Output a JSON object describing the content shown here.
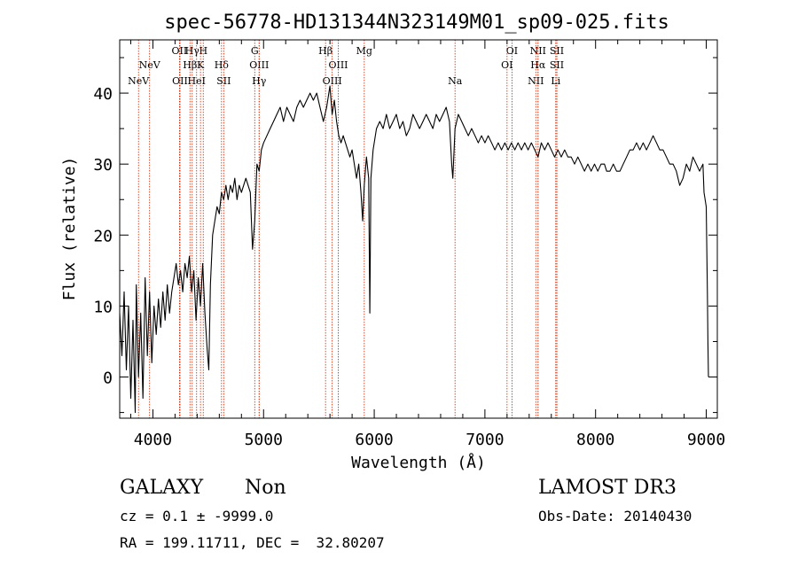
{
  "chart_data": {
    "type": "line",
    "title": "spec-56778-HD131344N323149M01_sp09-025.fits",
    "xlabel": "Wavelength (Å)",
    "ylabel": "Flux (relative)",
    "xlim": [
      3700,
      9100
    ],
    "ylim": [
      -5.8,
      47.5
    ],
    "x_ticks": [
      4000,
      5000,
      6000,
      7000,
      8000,
      9000
    ],
    "y_ticks": [
      0,
      10,
      20,
      30,
      40
    ],
    "grid": false,
    "line_color": "#000000",
    "marker_line_color": "#cc2200",
    "series": [
      {
        "points": [
          [
            3700,
            9
          ],
          [
            3720,
            3
          ],
          [
            3740,
            12
          ],
          [
            3760,
            1
          ],
          [
            3780,
            10
          ],
          [
            3800,
            -3
          ],
          [
            3820,
            8
          ],
          [
            3840,
            -5
          ],
          [
            3850,
            13
          ],
          [
            3870,
            0
          ],
          [
            3890,
            9
          ],
          [
            3910,
            -3
          ],
          [
            3930,
            14
          ],
          [
            3950,
            3
          ],
          [
            3970,
            12
          ],
          [
            3990,
            2
          ],
          [
            4010,
            10
          ],
          [
            4030,
            6
          ],
          [
            4050,
            11
          ],
          [
            4070,
            7
          ],
          [
            4090,
            12
          ],
          [
            4110,
            8
          ],
          [
            4130,
            13
          ],
          [
            4150,
            9
          ],
          [
            4170,
            12
          ],
          [
            4190,
            14
          ],
          [
            4210,
            16
          ],
          [
            4230,
            13
          ],
          [
            4250,
            15
          ],
          [
            4270,
            12
          ],
          [
            4290,
            16
          ],
          [
            4310,
            14
          ],
          [
            4330,
            17
          ],
          [
            4350,
            12
          ],
          [
            4370,
            15
          ],
          [
            4390,
            8
          ],
          [
            4410,
            14
          ],
          [
            4430,
            10
          ],
          [
            4450,
            16
          ],
          [
            4470,
            9
          ],
          [
            4490,
            4
          ],
          [
            4505,
            1
          ],
          [
            4520,
            13
          ],
          [
            4540,
            20
          ],
          [
            4560,
            22
          ],
          [
            4580,
            24
          ],
          [
            4600,
            23
          ],
          [
            4620,
            26
          ],
          [
            4640,
            25
          ],
          [
            4660,
            27
          ],
          [
            4680,
            25
          ],
          [
            4700,
            27
          ],
          [
            4720,
            26
          ],
          [
            4740,
            28
          ],
          [
            4760,
            25
          ],
          [
            4780,
            27
          ],
          [
            4800,
            26
          ],
          [
            4820,
            27
          ],
          [
            4840,
            28
          ],
          [
            4860,
            27
          ],
          [
            4880,
            26
          ],
          [
            4900,
            18
          ],
          [
            4920,
            22
          ],
          [
            4940,
            30
          ],
          [
            4960,
            29
          ],
          [
            4980,
            32
          ],
          [
            5000,
            33
          ],
          [
            5030,
            34
          ],
          [
            5060,
            35
          ],
          [
            5090,
            36
          ],
          [
            5120,
            37
          ],
          [
            5150,
            38
          ],
          [
            5180,
            36
          ],
          [
            5210,
            38
          ],
          [
            5240,
            37
          ],
          [
            5270,
            36
          ],
          [
            5300,
            38
          ],
          [
            5330,
            39
          ],
          [
            5360,
            38
          ],
          [
            5390,
            39
          ],
          [
            5420,
            40
          ],
          [
            5450,
            39
          ],
          [
            5480,
            40
          ],
          [
            5510,
            38
          ],
          [
            5540,
            36
          ],
          [
            5570,
            38
          ],
          [
            5600,
            41
          ],
          [
            5620,
            37
          ],
          [
            5640,
            39
          ],
          [
            5660,
            36
          ],
          [
            5680,
            34
          ],
          [
            5700,
            33
          ],
          [
            5720,
            34
          ],
          [
            5740,
            33
          ],
          [
            5760,
            32
          ],
          [
            5780,
            31
          ],
          [
            5800,
            32
          ],
          [
            5820,
            30
          ],
          [
            5840,
            28
          ],
          [
            5860,
            30
          ],
          [
            5880,
            26
          ],
          [
            5895,
            22
          ],
          [
            5910,
            27
          ],
          [
            5930,
            31
          ],
          [
            5950,
            28
          ],
          [
            5960,
            9
          ],
          [
            5970,
            28
          ],
          [
            5990,
            32
          ],
          [
            6020,
            35
          ],
          [
            6050,
            36
          ],
          [
            6080,
            35
          ],
          [
            6110,
            37
          ],
          [
            6140,
            35
          ],
          [
            6170,
            36
          ],
          [
            6200,
            37
          ],
          [
            6230,
            35
          ],
          [
            6260,
            36
          ],
          [
            6290,
            34
          ],
          [
            6320,
            35
          ],
          [
            6350,
            37
          ],
          [
            6380,
            36
          ],
          [
            6410,
            35
          ],
          [
            6440,
            36
          ],
          [
            6470,
            37
          ],
          [
            6500,
            36
          ],
          [
            6530,
            35
          ],
          [
            6560,
            37
          ],
          [
            6590,
            36
          ],
          [
            6620,
            37
          ],
          [
            6650,
            38
          ],
          [
            6680,
            36
          ],
          [
            6700,
            30
          ],
          [
            6710,
            28
          ],
          [
            6730,
            35
          ],
          [
            6760,
            37
          ],
          [
            6790,
            36
          ],
          [
            6820,
            35
          ],
          [
            6850,
            34
          ],
          [
            6880,
            35
          ],
          [
            6910,
            34
          ],
          [
            6940,
            33
          ],
          [
            6970,
            34
          ],
          [
            7000,
            33
          ],
          [
            7030,
            34
          ],
          [
            7060,
            33
          ],
          [
            7090,
            32
          ],
          [
            7120,
            33
          ],
          [
            7150,
            32
          ],
          [
            7180,
            33
          ],
          [
            7210,
            32
          ],
          [
            7240,
            33
          ],
          [
            7270,
            32
          ],
          [
            7300,
            33
          ],
          [
            7330,
            32
          ],
          [
            7360,
            33
          ],
          [
            7390,
            32
          ],
          [
            7420,
            33
          ],
          [
            7450,
            32
          ],
          [
            7480,
            31
          ],
          [
            7510,
            33
          ],
          [
            7540,
            32
          ],
          [
            7570,
            33
          ],
          [
            7600,
            32
          ],
          [
            7630,
            31
          ],
          [
            7660,
            32
          ],
          [
            7690,
            31
          ],
          [
            7720,
            32
          ],
          [
            7750,
            31
          ],
          [
            7780,
            31
          ],
          [
            7810,
            30
          ],
          [
            7840,
            31
          ],
          [
            7870,
            30
          ],
          [
            7900,
            29
          ],
          [
            7930,
            30
          ],
          [
            7960,
            29
          ],
          [
            7990,
            30
          ],
          [
            8020,
            29
          ],
          [
            8050,
            30
          ],
          [
            8080,
            30
          ],
          [
            8100,
            29
          ],
          [
            8130,
            29
          ],
          [
            8160,
            30
          ],
          [
            8190,
            29
          ],
          [
            8220,
            29
          ],
          [
            8250,
            30
          ],
          [
            8280,
            31
          ],
          [
            8310,
            32
          ],
          [
            8340,
            32
          ],
          [
            8370,
            33
          ],
          [
            8400,
            32
          ],
          [
            8430,
            33
          ],
          [
            8460,
            32
          ],
          [
            8490,
            33
          ],
          [
            8520,
            34
          ],
          [
            8550,
            33
          ],
          [
            8580,
            32
          ],
          [
            8610,
            32
          ],
          [
            8640,
            31
          ],
          [
            8670,
            30
          ],
          [
            8700,
            30
          ],
          [
            8730,
            29
          ],
          [
            8760,
            27
          ],
          [
            8790,
            28
          ],
          [
            8820,
            30
          ],
          [
            8850,
            29
          ],
          [
            8880,
            31
          ],
          [
            8910,
            30
          ],
          [
            8940,
            29
          ],
          [
            8970,
            30
          ],
          [
            8980,
            26
          ],
          [
            9000,
            24
          ],
          [
            9010,
            12
          ],
          [
            9015,
            5
          ],
          [
            9020,
            0
          ]
        ]
      }
    ],
    "lines": [
      {
        "label": "NeV",
        "x": 3870,
        "row": 3
      },
      {
        "label": "NeV",
        "x": 3970,
        "row": 2
      },
      {
        "label": "OII",
        "x": 4240,
        "row": 1
      },
      {
        "label": "OII",
        "x": 4245,
        "row": 3
      },
      {
        "label": "Hγ",
        "x": 4355,
        "row": 1
      },
      {
        "label": "Hβ",
        "x": 4335,
        "row": 2
      },
      {
        "label": "H",
        "x": 4455,
        "row": 1
      },
      {
        "label": "K",
        "x": 4430,
        "row": 2
      },
      {
        "label": "HeI",
        "x": 4395,
        "row": 3
      },
      {
        "label": "Hδ",
        "x": 4620,
        "row": 2
      },
      {
        "label": "SII",
        "x": 4640,
        "row": 3
      },
      {
        "label": "G",
        "x": 4920,
        "row": 1
      },
      {
        "label": "OIII",
        "x": 4960,
        "row": 2
      },
      {
        "label": "Hγ",
        "x": 4960,
        "row": 3
      },
      {
        "label": "Hβ",
        "x": 5560,
        "row": 1
      },
      {
        "label": "OIII",
        "x": 5675,
        "row": 2
      },
      {
        "label": "OIII",
        "x": 5620,
        "row": 3
      },
      {
        "label": "Mg",
        "x": 5910,
        "row": 1
      },
      {
        "label": "Na",
        "x": 6730,
        "row": 3
      },
      {
        "label": "OI",
        "x": 7245,
        "row": 1
      },
      {
        "label": "OI",
        "x": 7200,
        "row": 2
      },
      {
        "label": "NII",
        "x": 7480,
        "row": 1
      },
      {
        "label": "Hα",
        "x": 7480,
        "row": 2
      },
      {
        "label": "NII",
        "x": 7460,
        "row": 3
      },
      {
        "label": "SII",
        "x": 7650,
        "row": 1
      },
      {
        "label": "SII",
        "x": 7650,
        "row": 2
      },
      {
        "label": "Li",
        "x": 7640,
        "row": 3
      }
    ]
  },
  "info": {
    "class_label": "GALAXY",
    "subclass_label": "Non",
    "cz_text": "cz = 0.1 ± -9999.0",
    "radec_text": "RA = 199.11711, DEC =  32.80207",
    "survey_label": "LAMOST DR3",
    "obs_date_text": "Obs-Date: 20140430"
  }
}
